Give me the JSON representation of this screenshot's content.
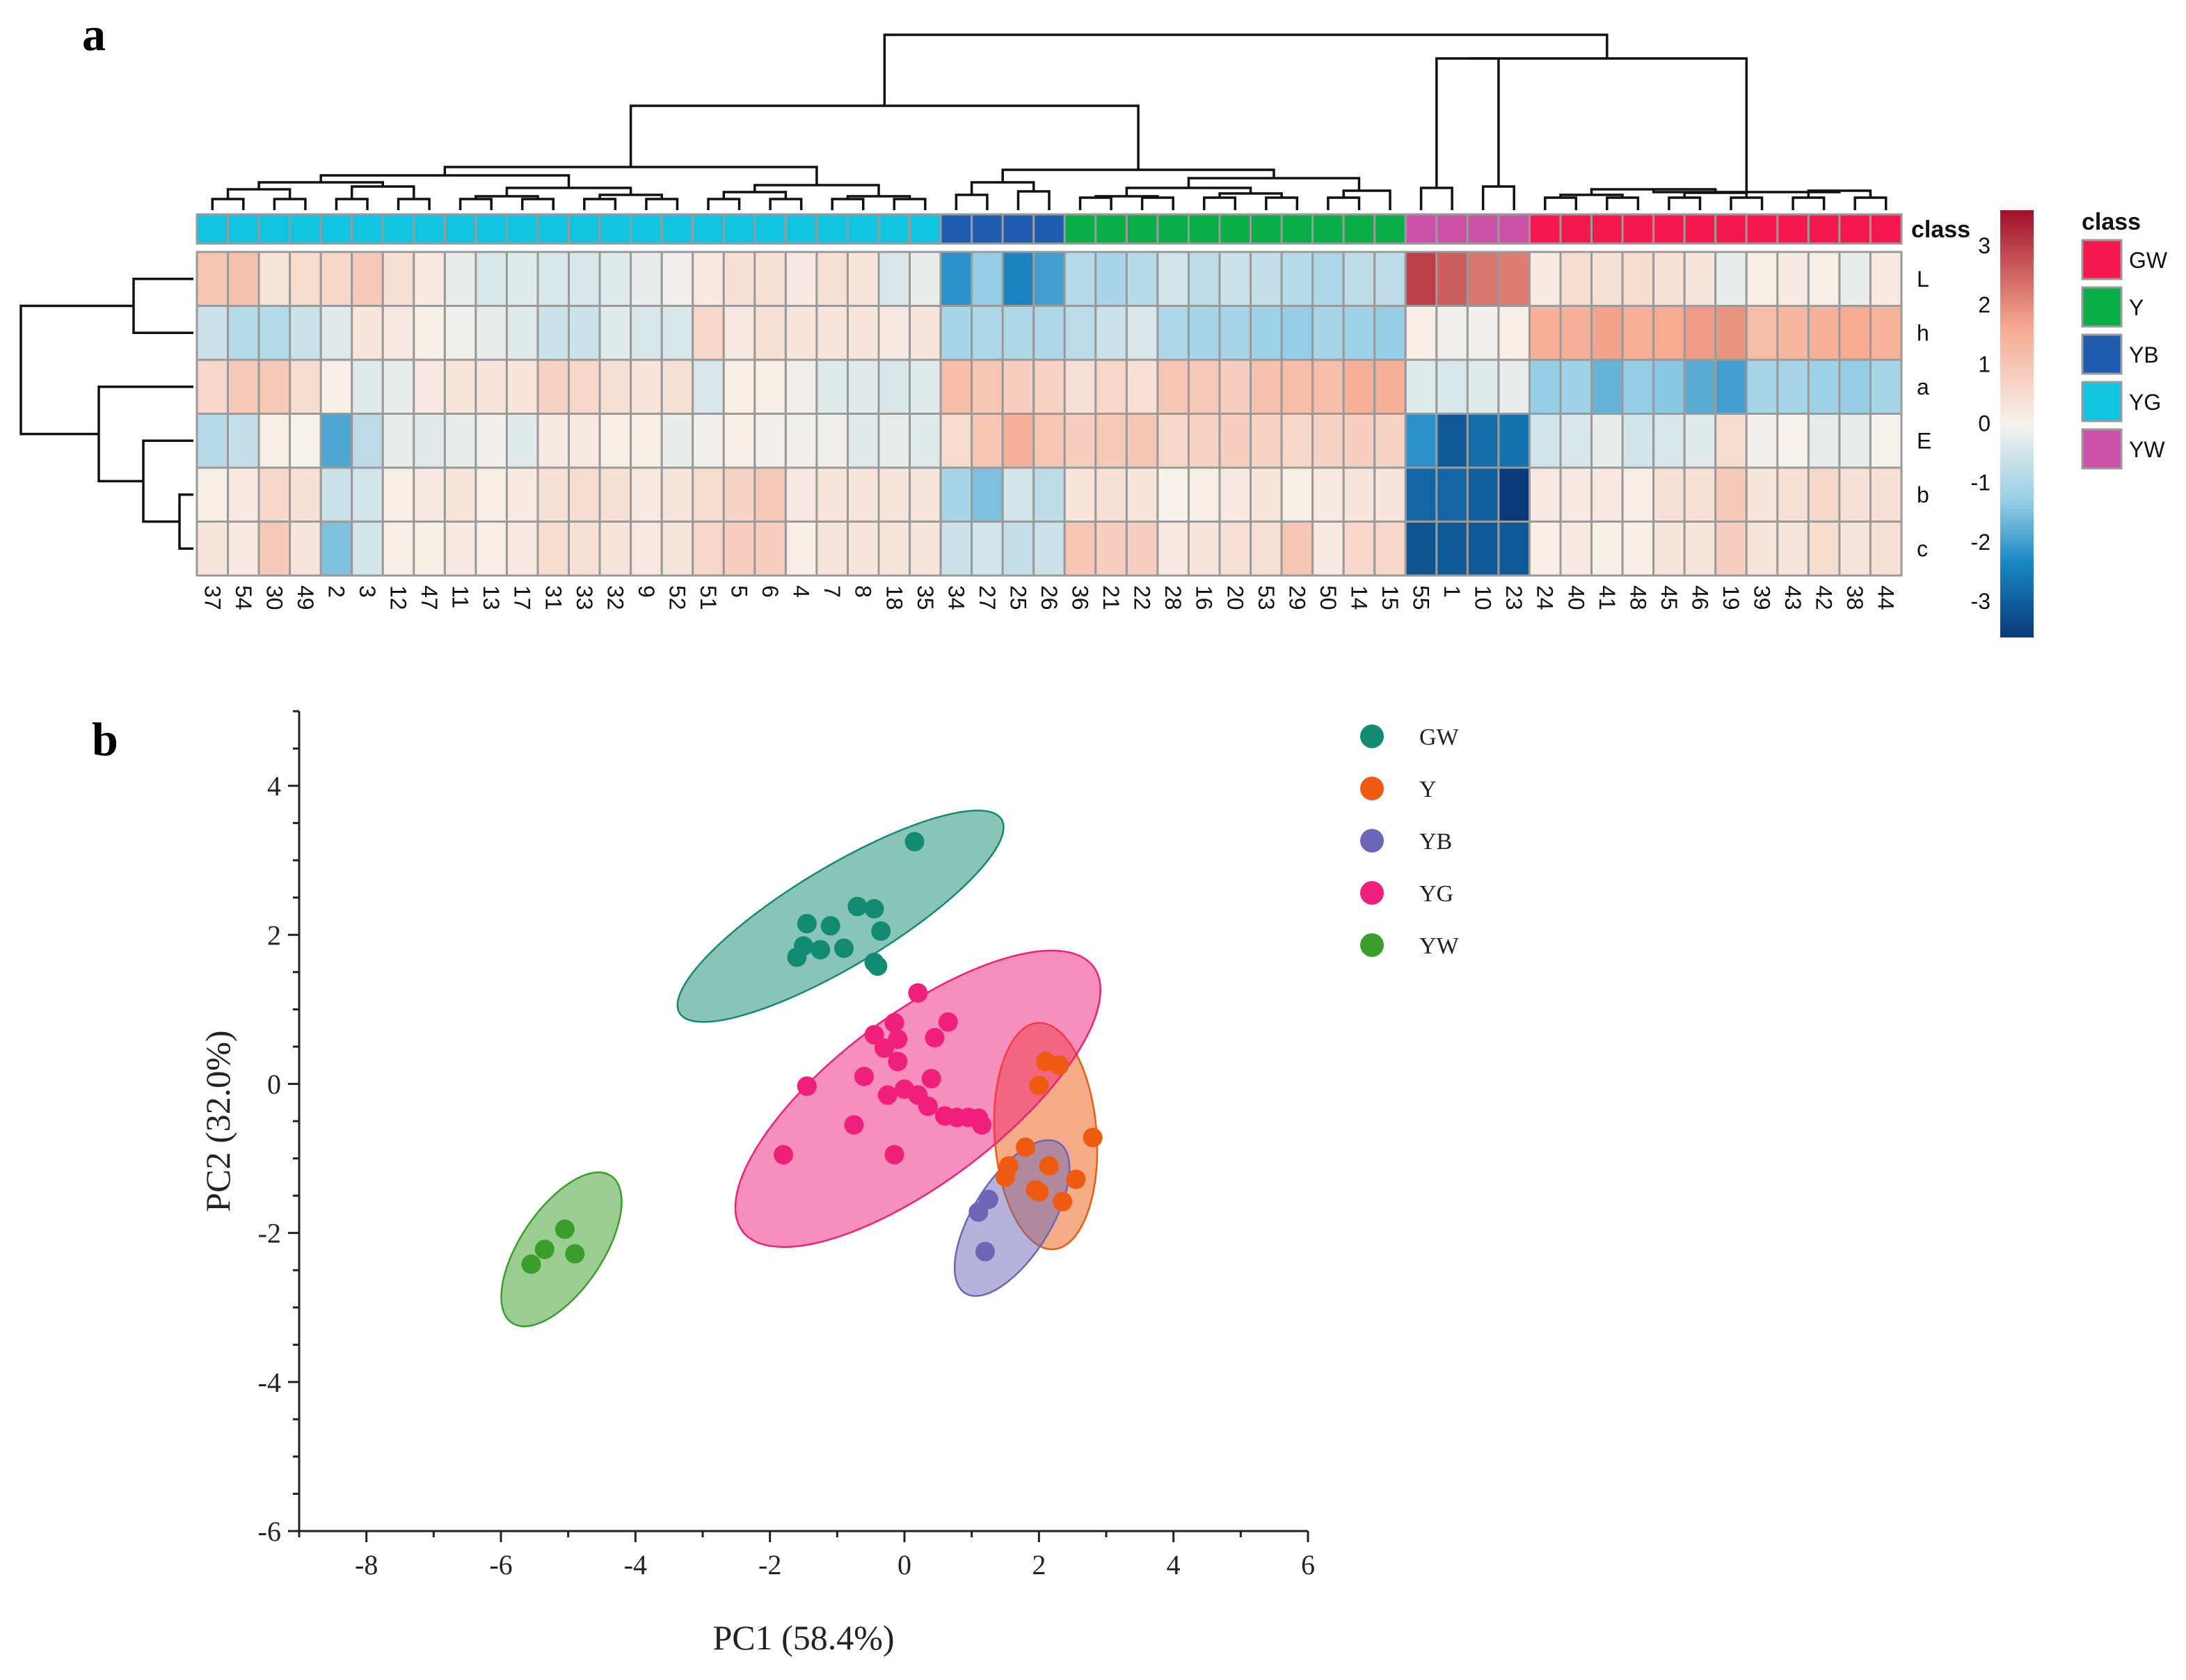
{
  "panels": {
    "a": "a",
    "b": "b"
  },
  "chart_data": [
    {
      "type": "heatmap",
      "panel": "a",
      "rows": [
        "L",
        "h",
        "a",
        "E",
        "b",
        "c"
      ],
      "columns": [
        "37",
        "54",
        "30",
        "49",
        "2",
        "3",
        "12",
        "47",
        "11",
        "13",
        "17",
        "31",
        "33",
        "32",
        "9",
        "52",
        "51",
        "5",
        "6",
        "4",
        "7",
        "8",
        "18",
        "35",
        "34",
        "27",
        "25",
        "26",
        "36",
        "21",
        "22",
        "28",
        "16",
        "20",
        "53",
        "29",
        "50",
        "14",
        "15",
        "55",
        "1",
        "10",
        "23",
        "24",
        "40",
        "41",
        "48",
        "45",
        "46",
        "19",
        "39",
        "43",
        "42",
        "38",
        "44"
      ],
      "column_classes": [
        "YG",
        "YG",
        "YG",
        "YG",
        "YG",
        "YG",
        "YG",
        "YG",
        "YG",
        "YG",
        "YG",
        "YG",
        "YG",
        "YG",
        "YG",
        "YG",
        "YG",
        "YG",
        "YG",
        "YG",
        "YG",
        "YG",
        "YG",
        "YG",
        "YB",
        "YB",
        "YB",
        "YB",
        "Y",
        "Y",
        "Y",
        "Y",
        "Y",
        "Y",
        "Y",
        "Y",
        "Y",
        "Y",
        "Y",
        "YW",
        "YW",
        "YW",
        "YW",
        "GW",
        "GW",
        "GW",
        "GW",
        "GW",
        "GW",
        "GW",
        "GW",
        "GW",
        "GW",
        "GW",
        "GW"
      ],
      "values": [
        [
          1.0,
          1.1,
          0.3,
          0.5,
          0.6,
          0.9,
          0.4,
          0.2,
          -0.2,
          -0.4,
          -0.3,
          -0.4,
          -0.4,
          -0.3,
          -0.2,
          -0.1,
          0.2,
          0.4,
          0.4,
          0.2,
          0.4,
          0.3,
          -0.4,
          -0.2,
          -2.2,
          -1.3,
          -2.4,
          -2.0,
          -0.9,
          -1.1,
          -0.9,
          -0.5,
          -0.8,
          -0.6,
          -0.7,
          -0.9,
          -1.0,
          -0.8,
          -0.8,
          3.0,
          2.6,
          2.3,
          2.2,
          0.2,
          0.5,
          0.4,
          0.5,
          0.4,
          0.3,
          -0.2,
          0.1,
          0.2,
          0.1,
          -0.2,
          0.2
        ],
        [
          -0.6,
          -0.9,
          -0.9,
          -0.6,
          -0.3,
          0.3,
          0.2,
          0.1,
          -0.1,
          -0.2,
          -0.3,
          -0.6,
          -0.6,
          -0.3,
          -0.4,
          -0.4,
          0.6,
          0.2,
          0.4,
          0.3,
          0.3,
          0.3,
          0.2,
          0.3,
          -1.1,
          -1.0,
          -1.0,
          -1.0,
          -0.8,
          -0.6,
          -0.4,
          -1.0,
          -1.1,
          -1.1,
          -1.2,
          -1.3,
          -1.1,
          -1.2,
          -1.3,
          0.1,
          -0.1,
          -0.1,
          0.1,
          1.5,
          1.5,
          1.7,
          1.5,
          1.6,
          1.8,
          1.9,
          1.2,
          1.3,
          1.5,
          1.6,
          1.4
        ],
        [
          0.6,
          0.9,
          0.9,
          0.5,
          0.1,
          -0.3,
          -0.2,
          0.2,
          0.3,
          0.3,
          0.3,
          0.7,
          0.6,
          0.4,
          0.3,
          0.4,
          -0.4,
          0.1,
          0.1,
          -0.1,
          -0.3,
          -0.3,
          -0.4,
          -0.3,
          1.2,
          1.0,
          0.8,
          0.7,
          0.4,
          0.6,
          0.4,
          1.0,
          0.9,
          0.8,
          1.1,
          1.2,
          1.2,
          1.5,
          1.5,
          -0.3,
          -0.4,
          -0.3,
          -0.2,
          -1.3,
          -1.2,
          -1.7,
          -1.3,
          -1.4,
          -1.8,
          -2.0,
          -1.1,
          -1.1,
          -1.2,
          -1.3,
          -1.1
        ],
        [
          -0.9,
          -0.7,
          0.1,
          0.0,
          -1.9,
          -0.8,
          -0.2,
          -0.3,
          -0.2,
          -0.1,
          -0.3,
          0.2,
          0.2,
          0.1,
          0.1,
          -0.2,
          -0.1,
          0.1,
          -0.1,
          -0.1,
          -0.1,
          -0.3,
          -0.2,
          -0.3,
          0.5,
          1.0,
          1.5,
          1.0,
          0.8,
          0.9,
          1.0,
          0.6,
          0.7,
          0.8,
          0.7,
          0.6,
          0.7,
          0.8,
          0.7,
          -2.2,
          -3.1,
          -2.8,
          -2.7,
          -0.5,
          -0.4,
          -0.2,
          -0.5,
          -0.4,
          -0.3,
          0.5,
          -0.1,
          0.0,
          -0.2,
          -0.2,
          0.0
        ],
        [
          0.1,
          0.2,
          0.6,
          0.4,
          -0.6,
          -0.5,
          0.1,
          0.2,
          0.3,
          0.1,
          0.2,
          0.4,
          0.5,
          0.4,
          0.2,
          0.3,
          0.5,
          0.7,
          0.9,
          0.2,
          0.3,
          0.3,
          0.3,
          0.3,
          -1.1,
          -1.5,
          -0.5,
          -0.8,
          0.3,
          0.4,
          0.3,
          0.0,
          0.1,
          0.2,
          0.3,
          0.1,
          0.2,
          0.3,
          0.3,
          -2.9,
          -2.9,
          -3.0,
          -3.7,
          0.2,
          0.2,
          0.2,
          0.1,
          0.4,
          0.4,
          0.9,
          0.3,
          0.4,
          0.6,
          0.4,
          0.4
        ],
        [
          0.3,
          0.2,
          0.9,
          0.3,
          -1.5,
          -0.5,
          0.1,
          0.1,
          0.2,
          0.1,
          0.2,
          0.5,
          0.4,
          0.3,
          0.2,
          0.3,
          0.6,
          0.8,
          0.8,
          0.1,
          0.3,
          0.3,
          0.3,
          0.3,
          -0.6,
          -0.5,
          -0.7,
          -0.6,
          1.0,
          0.8,
          0.8,
          0.2,
          0.3,
          0.4,
          0.4,
          1.0,
          0.2,
          0.6,
          0.6,
          -3.2,
          -3.1,
          -3.1,
          -3.1,
          0.1,
          0.2,
          0.1,
          0.1,
          0.3,
          0.3,
          0.8,
          0.3,
          0.3,
          0.5,
          0.3,
          0.4
        ]
      ],
      "color_scale": {
        "min": -3.6,
        "max": 3.6,
        "ticks": [
          3,
          2,
          1,
          0,
          -1,
          -2,
          -3
        ],
        "low": "#0a3a7a",
        "mid": "#f7f2ec",
        "high": "#a0102a"
      },
      "class_label": "class",
      "class_legend_title": "class",
      "class_colors": {
        "GW": "#f4184e",
        "Y": "#0aae48",
        "YB": "#1f5cb0",
        "YG": "#11c4e0",
        "YW": "#cc52a8"
      },
      "class_order": [
        "GW",
        "Y",
        "YB",
        "YG",
        "YW"
      ]
    },
    {
      "type": "scatter",
      "panel": "b",
      "xlabel": "PC1 (58.4%)",
      "ylabel": "PC2 (32.0%)",
      "xlim": [
        -9,
        6
      ],
      "ylim": [
        -6,
        5
      ],
      "xticks": [
        -8,
        -6,
        -4,
        -2,
        0,
        2,
        4,
        6
      ],
      "yticks": [
        -6,
        -4,
        -2,
        0,
        2,
        4
      ],
      "legend_position": "right",
      "series": [
        {
          "name": "GW",
          "color": "#138a72",
          "points": [
            [
              0.15,
              3.25
            ],
            [
              -0.7,
              2.38
            ],
            [
              -0.45,
              2.35
            ],
            [
              -1.1,
              2.12
            ],
            [
              -1.45,
              2.15
            ],
            [
              -0.35,
              2.05
            ],
            [
              -0.9,
              1.82
            ],
            [
              -1.25,
              1.8
            ],
            [
              -1.5,
              1.85
            ],
            [
              -1.6,
              1.7
            ],
            [
              -0.45,
              1.63
            ],
            [
              -0.4,
              1.58
            ]
          ],
          "ellipse": {
            "cx": -0.95,
            "cy": 2.25,
            "rx": 2.65,
            "ry": 0.7,
            "angle_deg": 31
          }
        },
        {
          "name": "Y",
          "color": "#ee5b10",
          "points": [
            [
              2.1,
              0.3
            ],
            [
              2.3,
              0.25
            ],
            [
              2.0,
              -0.02
            ],
            [
              2.8,
              -0.72
            ],
            [
              1.8,
              -0.85
            ],
            [
              2.15,
              -1.1
            ],
            [
              1.55,
              -1.1
            ],
            [
              1.5,
              -1.25
            ],
            [
              2.55,
              -1.28
            ],
            [
              1.95,
              -1.42
            ],
            [
              2.0,
              -1.45
            ],
            [
              2.35,
              -1.58
            ]
          ],
          "ellipse": {
            "cx": 2.1,
            "cy": -0.7,
            "rx": 0.72,
            "ry": 1.6,
            "angle_deg": 4
          }
        },
        {
          "name": "YB",
          "color": "#6b66b8",
          "points": [
            [
              1.25,
              -1.55
            ],
            [
              1.1,
              -1.72
            ],
            [
              1.2,
              -2.25
            ]
          ],
          "ellipse": {
            "cx": 1.6,
            "cy": -1.8,
            "rx": 1.25,
            "ry": 0.55,
            "angle_deg": 58
          }
        },
        {
          "name": "YG",
          "color": "#f01f7c",
          "points": [
            [
              0.2,
              1.22
            ],
            [
              0.65,
              0.83
            ],
            [
              -0.15,
              0.82
            ],
            [
              -0.45,
              0.66
            ],
            [
              -0.1,
              0.6
            ],
            [
              0.45,
              0.62
            ],
            [
              -0.3,
              0.48
            ],
            [
              -0.1,
              0.3
            ],
            [
              -0.6,
              0.1
            ],
            [
              0.4,
              0.07
            ],
            [
              -1.45,
              -0.03
            ],
            [
              0.0,
              -0.07
            ],
            [
              -0.25,
              -0.15
            ],
            [
              0.2,
              -0.15
            ],
            [
              0.35,
              -0.3
            ],
            [
              0.6,
              -0.43
            ],
            [
              0.78,
              -0.45
            ],
            [
              0.95,
              -0.45
            ],
            [
              1.1,
              -0.46
            ],
            [
              1.15,
              -0.55
            ],
            [
              -0.75,
              -0.55
            ],
            [
              -1.8,
              -0.95
            ],
            [
              -0.15,
              -0.95
            ]
          ],
          "ellipse": {
            "cx": 0.2,
            "cy": -0.2,
            "rx": 3.1,
            "ry": 1.18,
            "angle_deg": 37
          }
        },
        {
          "name": "YW",
          "color": "#3a9e2a",
          "points": [
            [
              -5.05,
              -1.95
            ],
            [
              -5.35,
              -2.22
            ],
            [
              -4.9,
              -2.28
            ],
            [
              -5.55,
              -2.42
            ]
          ],
          "ellipse": {
            "cx": -5.1,
            "cy": -2.22,
            "rx": 1.25,
            "ry": 0.58,
            "angle_deg": 56
          }
        }
      ]
    }
  ]
}
